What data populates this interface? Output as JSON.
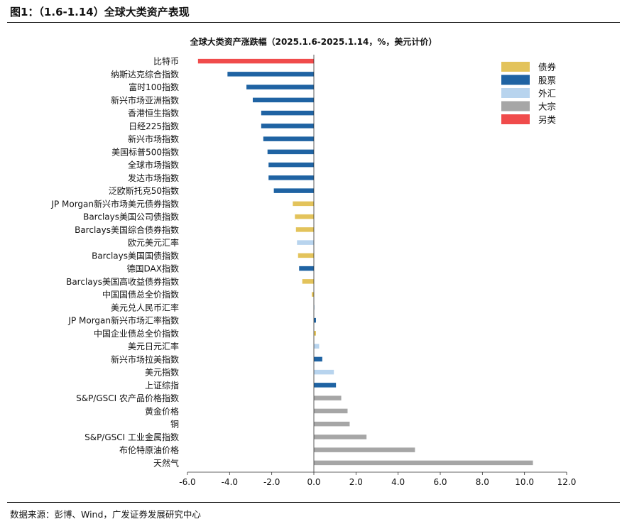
{
  "figure_title": "图1：（1.6-1.14）全球大类资产表现",
  "source": "数据来源：彭博、Wind，广发证券发展研究中心",
  "chart_data": {
    "type": "bar",
    "orientation": "horizontal",
    "title": "全球大类资产涨跌幅（2025.1.6-2025.1.14，%，美元计价）",
    "xlim": [
      -6,
      12
    ],
    "xticks": [
      -6,
      -4,
      -2,
      0,
      2,
      4,
      6,
      8,
      10,
      12
    ],
    "xtick_labels": [
      "-6.0",
      "-4.0",
      "-2.0",
      "0.0",
      "2.0",
      "4.0",
      "6.0",
      "8.0",
      "10.0",
      "12.0"
    ],
    "grid": false,
    "legend_position": "top-right",
    "legend": [
      {
        "name": "债券",
        "color": "#E3C35B"
      },
      {
        "name": "股票",
        "color": "#1F63A3"
      },
      {
        "name": "外汇",
        "color": "#B8D4EE"
      },
      {
        "name": "大宗",
        "color": "#A6A6A6"
      },
      {
        "name": "另类",
        "color": "#F04B4B"
      }
    ],
    "bars": [
      {
        "label": "比特币",
        "value": -5.5,
        "category": "另类"
      },
      {
        "label": "纳斯达克综合指数",
        "value": -4.1,
        "category": "股票"
      },
      {
        "label": "富时100指数",
        "value": -3.2,
        "category": "股票"
      },
      {
        "label": "新兴市场亚洲指数",
        "value": -2.9,
        "category": "股票"
      },
      {
        "label": "香港恒生指数",
        "value": -2.5,
        "category": "股票"
      },
      {
        "label": "日经225指数",
        "value": -2.5,
        "category": "股票"
      },
      {
        "label": "新兴市场指数",
        "value": -2.4,
        "category": "股票"
      },
      {
        "label": "美国标普500指数",
        "value": -2.2,
        "category": "股票"
      },
      {
        "label": "全球市场指数",
        "value": -2.15,
        "category": "股票"
      },
      {
        "label": "发达市场指数",
        "value": -2.15,
        "category": "股票"
      },
      {
        "label": "泛欧斯托克50指数",
        "value": -1.9,
        "category": "股票"
      },
      {
        "label": "JP Morgan新兴市场美元债券指数",
        "value": -1.0,
        "category": "债券"
      },
      {
        "label": "Barclays美国公司债指数",
        "value": -0.9,
        "category": "债券"
      },
      {
        "label": "Barclays美国综合债券指数",
        "value": -0.85,
        "category": "债券"
      },
      {
        "label": "欧元美元汇率",
        "value": -0.8,
        "category": "外汇"
      },
      {
        "label": "Barclays美国国债指数",
        "value": -0.75,
        "category": "债券"
      },
      {
        "label": "德国DAX指数",
        "value": -0.7,
        "category": "股票"
      },
      {
        "label": "Barclays美国高收益债券指数",
        "value": -0.55,
        "category": "债券"
      },
      {
        "label": "中国国债总全价指数",
        "value": -0.1,
        "category": "债券"
      },
      {
        "label": "美元兑人民币汇率",
        "value": 0.02,
        "category": "外汇"
      },
      {
        "label": "JP Morgan新兴市场汇率指数",
        "value": 0.1,
        "category": "股票"
      },
      {
        "label": "中国企业债总全价指数",
        "value": 0.1,
        "category": "债券"
      },
      {
        "label": "美元日元汇率",
        "value": 0.25,
        "category": "外汇"
      },
      {
        "label": "新兴市场拉美指数",
        "value": 0.4,
        "category": "股票"
      },
      {
        "label": "美元指数",
        "value": 0.95,
        "category": "外汇"
      },
      {
        "label": "上证综指",
        "value": 1.05,
        "category": "股票"
      },
      {
        "label": "S&P/GSCI 农产品价格指数",
        "value": 1.3,
        "category": "大宗"
      },
      {
        "label": "黄金价格",
        "value": 1.6,
        "category": "大宗"
      },
      {
        "label": "铜",
        "value": 1.7,
        "category": "大宗"
      },
      {
        "label": "S&P/GSCI 工业金属指数",
        "value": 2.5,
        "category": "大宗"
      },
      {
        "label": "布伦特原油价格",
        "value": 4.8,
        "category": "大宗"
      },
      {
        "label": "天然气",
        "value": 10.4,
        "category": "大宗"
      }
    ]
  }
}
